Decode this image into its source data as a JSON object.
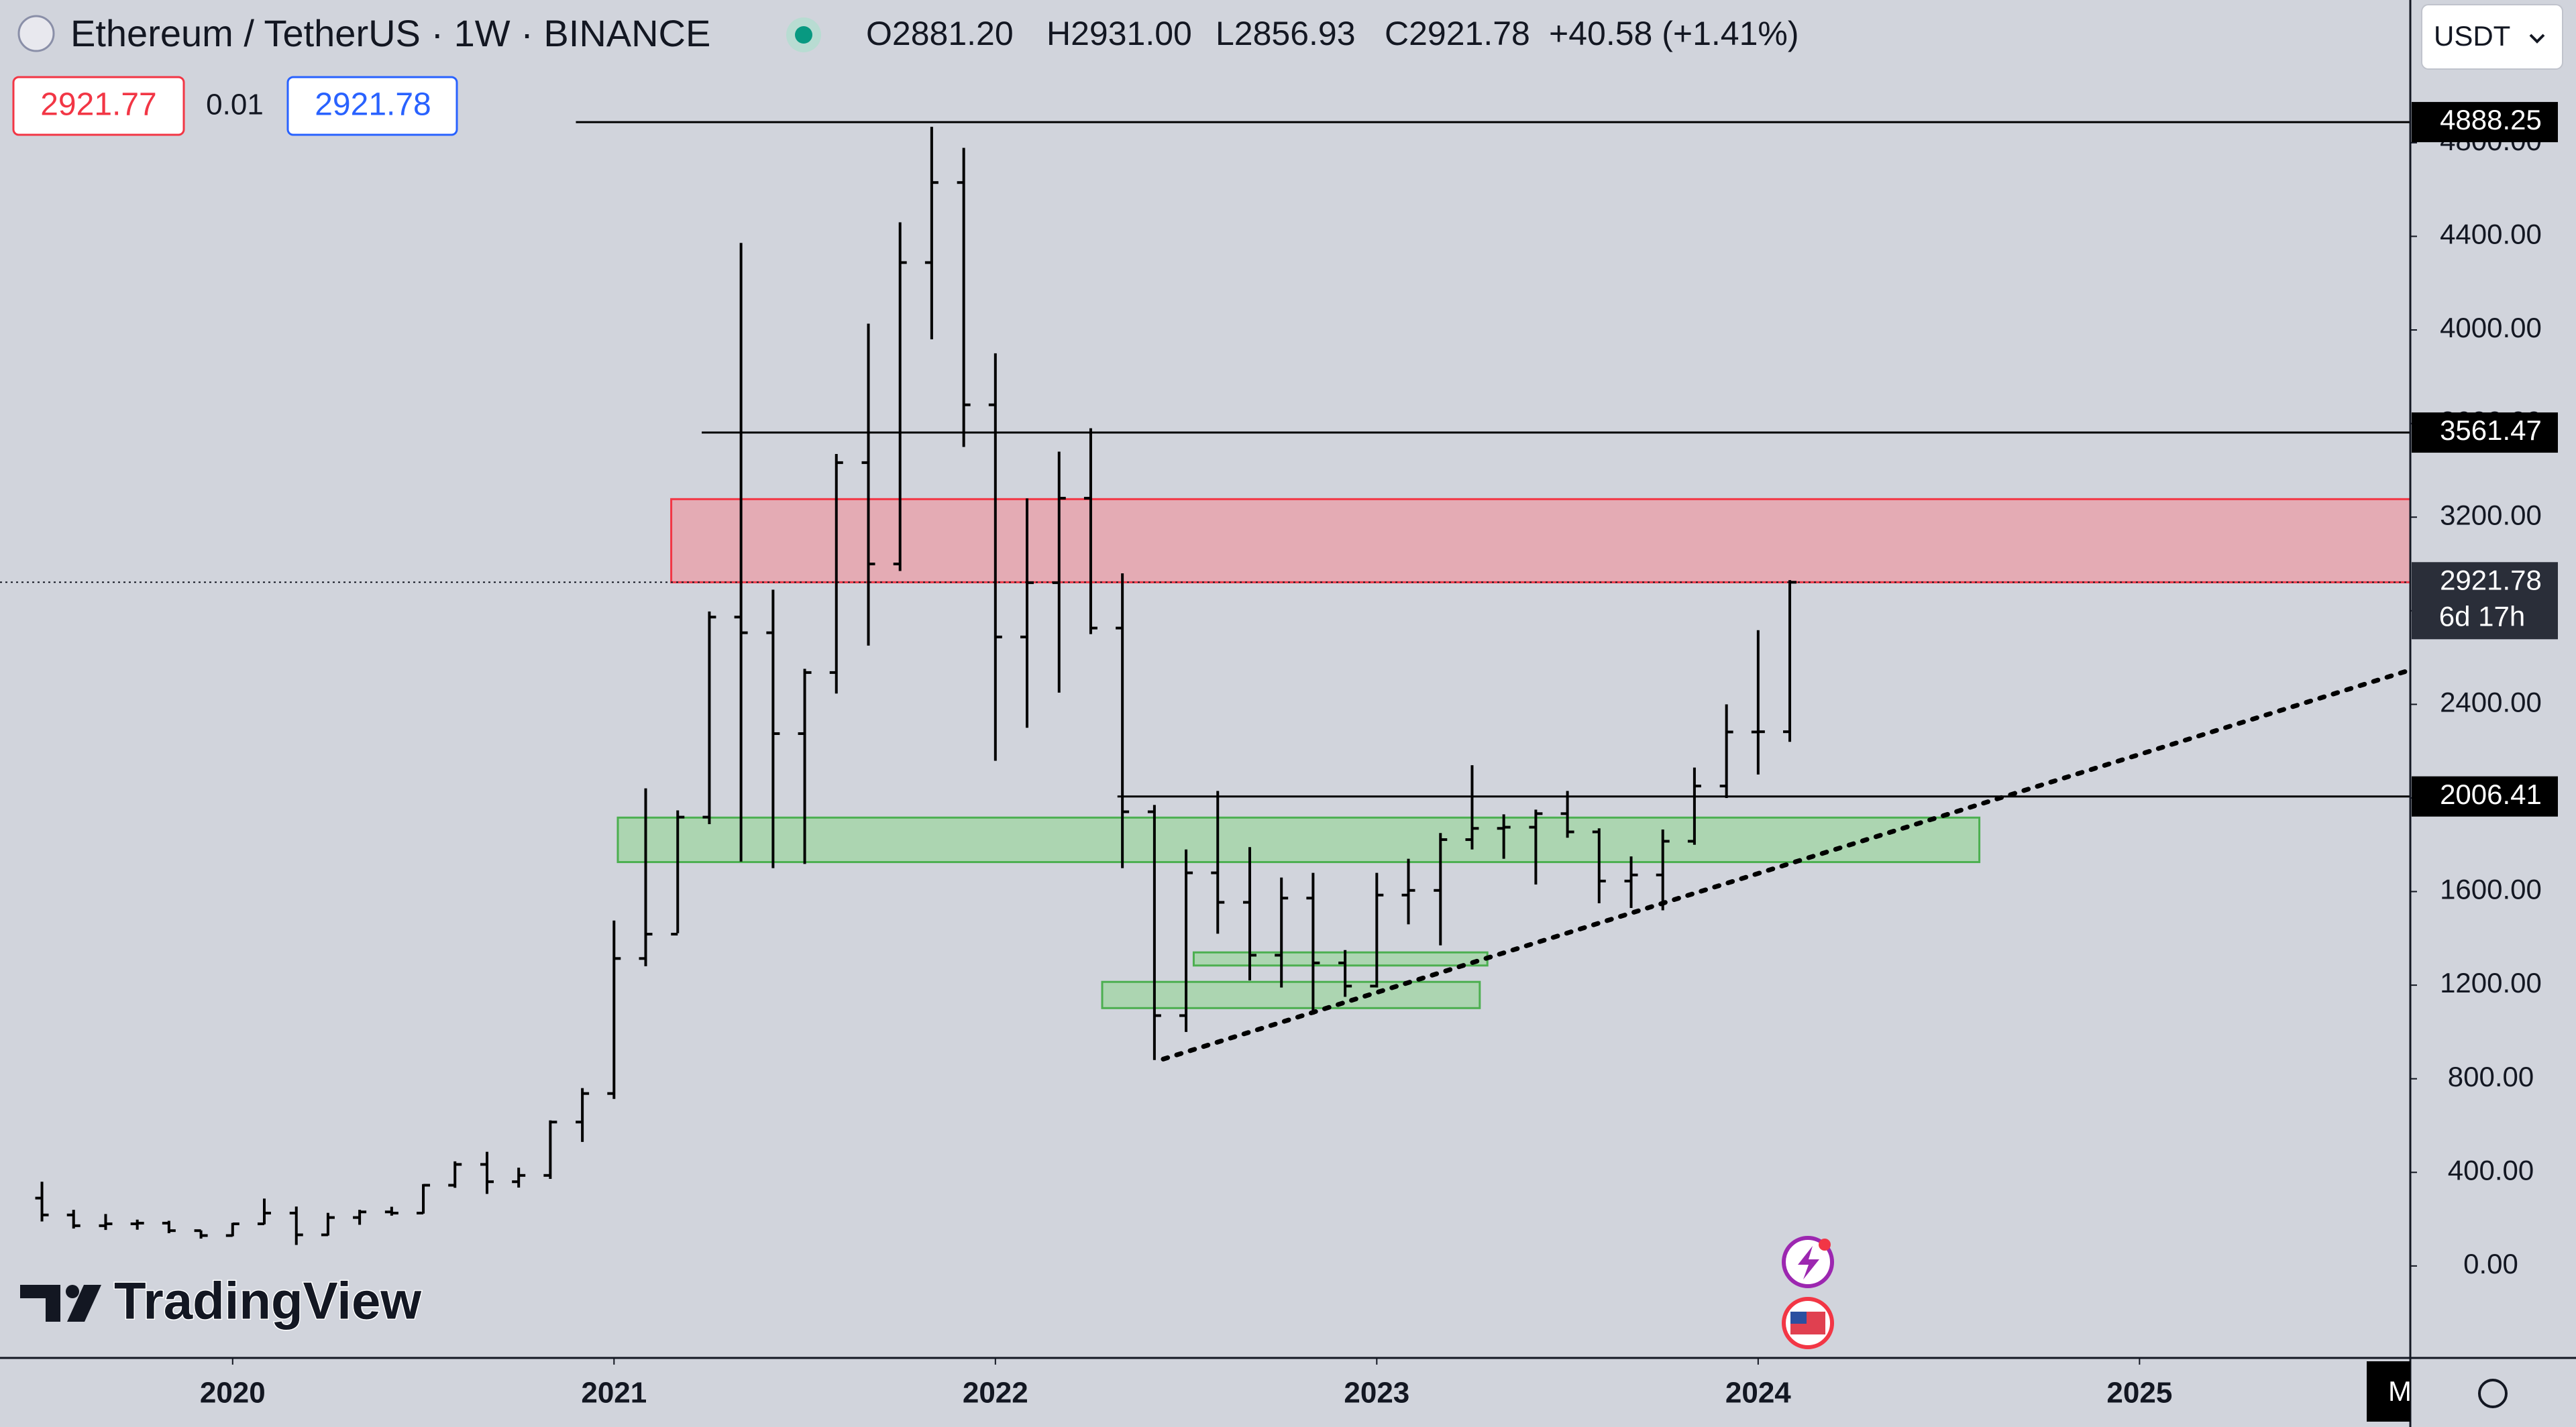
{
  "header": {
    "title": "Ethereum / TetherUS · 1W · BINANCE",
    "ohlc": [
      "O2881.20",
      "H2931.00",
      "L2856.93",
      "C2921.78",
      "+40.58 (+1.41%)"
    ],
    "bid": "2921.77",
    "spread": "0.01",
    "ask": "2921.78",
    "currency": "USDT",
    "logo": "TradingView",
    "corner": "M"
  },
  "chart_data": {
    "type": "ohlc",
    "x": [
      2019.5,
      2019.583,
      2019.667,
      2019.75,
      2019.833,
      2019.917,
      2020,
      2020.083,
      2020.167,
      2020.25,
      2020.333,
      2020.417,
      2020.5,
      2020.583,
      2020.667,
      2020.75,
      2020.833,
      2020.917,
      2021,
      2021.083,
      2021.167,
      2021.25,
      2021.333,
      2021.417,
      2021.5,
      2021.583,
      2021.667,
      2021.75,
      2021.833,
      2021.917,
      2022,
      2022.083,
      2022.167,
      2022.25,
      2022.333,
      2022.417,
      2022.5,
      2022.583,
      2022.667,
      2022.75,
      2022.833,
      2022.917,
      2023,
      2023.083,
      2023.167,
      2023.25,
      2023.333,
      2023.417,
      2023.5,
      2023.583,
      2023.667,
      2023.75,
      2023.833,
      2023.917,
      2024,
      2024.083
    ],
    "open": [
      290,
      218,
      172,
      180,
      183,
      151,
      130,
      180,
      226,
      133,
      207,
      231,
      226,
      345,
      434,
      360,
      387,
      615,
      737,
      1314,
      1418,
      1918,
      2773,
      2706,
      2275,
      2536,
      3433,
      3000,
      4288,
      4630,
      3680,
      2688,
      2920,
      3281,
      2726,
      1941,
      1070,
      1680,
      1554,
      1328,
      1572,
      1295,
      1196,
      1585,
      1605,
      1822,
      1870,
      1875,
      1933,
      1855,
      1645,
      1671,
      1815,
      2051,
      2282,
      2283
    ],
    "high": [
      360,
      240,
      222,
      198,
      193,
      152,
      184,
      288,
      254,
      227,
      240,
      253,
      350,
      447,
      488,
      420,
      622,
      760,
      1476,
      2041,
      1947,
      2797,
      4372,
      2890,
      2552,
      3470,
      4027,
      4460,
      4868,
      4778,
      3900,
      3280,
      3480,
      3580,
      2960,
      1970,
      1780,
      2030,
      1790,
      1660,
      1680,
      1350,
      1680,
      1740,
      1850,
      2140,
      1930,
      1950,
      2030,
      1870,
      1750,
      1865,
      2130,
      2400,
      2717,
      2931
    ],
    "low": [
      190,
      160,
      154,
      155,
      140,
      117,
      127,
      178,
      90,
      130,
      176,
      215,
      224,
      334,
      308,
      335,
      372,
      530,
      714,
      1281,
      1422,
      1888,
      1728,
      1700,
      1718,
      2446,
      2651,
      2970,
      3960,
      3500,
      2159,
      2300,
      2450,
      2700,
      1700,
      880,
      1000,
      1420,
      1220,
      1190,
      1074,
      1150,
      1190,
      1460,
      1370,
      1780,
      1740,
      1630,
      1830,
      1550,
      1530,
      1520,
      1800,
      2000,
      2100,
      2240
    ],
    "close": [
      218,
      172,
      180,
      183,
      151,
      130,
      180,
      226,
      133,
      207,
      231,
      226,
      345,
      434,
      360,
      387,
      615,
      737,
      1314,
      1418,
      1918,
      2773,
      2706,
      2275,
      2536,
      3433,
      3000,
      4288,
      4630,
      3680,
      2688,
      2920,
      3281,
      2726,
      1941,
      1070,
      1680,
      1554,
      1328,
      1572,
      1295,
      1196,
      1585,
      1605,
      1822,
      1870,
      1875,
      1933,
      1855,
      1645,
      1671,
      1815,
      2051,
      2282,
      2283,
      2921.78
    ],
    "color": "#000000",
    "xlim": [
      2019.39,
      2025.71
    ],
    "xticks": [
      2020,
      2021,
      2022,
      2023,
      2024,
      2025
    ],
    "ylim": [
      -393,
      5410
    ],
    "yticks": [
      {
        "value": 0,
        "label": "0.00"
      },
      {
        "value": 400,
        "label": "400.00"
      },
      {
        "value": 800,
        "label": "800.00"
      },
      {
        "value": 1200,
        "label": "1200.00"
      },
      {
        "value": 1600,
        "label": "1600.00"
      },
      {
        "value": 2000,
        "label": "2000.00"
      },
      {
        "value": 2400,
        "label": "2400.00"
      },
      {
        "value": 2800,
        "label": "2800.00"
      },
      {
        "value": 3200,
        "label": "3200.00"
      },
      {
        "value": 3600,
        "label": "3600.00"
      },
      {
        "value": 4000,
        "label": "4000.00"
      },
      {
        "value": 4400,
        "label": "4400.00"
      },
      {
        "value": 4800,
        "label": "4800.00"
      }
    ],
    "levels": [
      {
        "value": 4888.25,
        "x_start": 2020.9
      },
      {
        "value": 3561.47,
        "x_start": 2021.23
      },
      {
        "value": 2006.41,
        "x_start": 2022.32
      }
    ],
    "last_price": 2921.78,
    "countdown": "6d 17h",
    "zones": [
      {
        "ymin": 2921.78,
        "ymax": 3277,
        "xmin": 2021.15,
        "xmax": 2025.71,
        "color": "#e8a0aa"
      },
      {
        "ymin": 1726,
        "ymax": 1916,
        "xmin": 2021.01,
        "xmax": 2024.58,
        "color": "#a3d4a6"
      },
      {
        "ymin": 1284,
        "ymax": 1340,
        "xmin": 2022.52,
        "xmax": 2023.29,
        "color": "#a3d4a6"
      },
      {
        "ymin": 1102,
        "ymax": 1214,
        "xmin": 2022.28,
        "xmax": 2023.27,
        "color": "#a3d4a6"
      }
    ],
    "trendline": {
      "x": [
        2022.44,
        2025.71
      ],
      "values": [
        884,
        2547
      ]
    }
  }
}
